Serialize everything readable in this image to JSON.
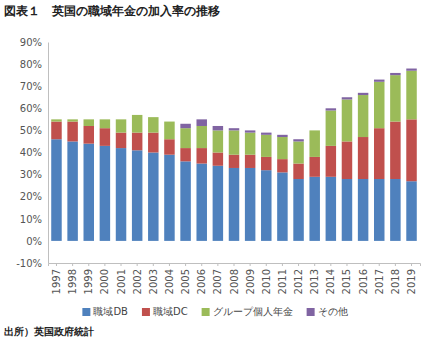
{
  "chart_data": {
    "type": "bar",
    "stacked": true,
    "grid": false,
    "legend": "bottom",
    "title": "図表１　英国の職域年金の加入率の推移",
    "source": "出所）英国政府統計",
    "categories": [
      "1997",
      "1998",
      "1999",
      "2000",
      "2001",
      "2002",
      "2003",
      "2004",
      "2005",
      "2006",
      "2007",
      "2008",
      "2009",
      "2010",
      "2011",
      "2012",
      "2013",
      "2014",
      "2015",
      "2016",
      "2017",
      "2018",
      "2019"
    ],
    "ylim": [
      -10,
      90
    ],
    "yticks": [
      {
        "value": -10,
        "label": "-10%"
      },
      {
        "value": 0,
        "label": "0%"
      },
      {
        "value": 10,
        "label": "10%"
      },
      {
        "value": 20,
        "label": "20%"
      },
      {
        "value": 30,
        "label": "30%"
      },
      {
        "value": 40,
        "label": "40%"
      },
      {
        "value": 50,
        "label": "50%"
      },
      {
        "value": 60,
        "label": "60%"
      },
      {
        "value": 70,
        "label": "70%"
      },
      {
        "value": 80,
        "label": "80%"
      },
      {
        "value": 90,
        "label": "90%"
      }
    ],
    "series": [
      {
        "name": "職域DB",
        "color": "#4f81bd",
        "values": [
          46,
          45,
          44,
          43,
          42,
          41,
          40,
          39,
          36,
          35,
          34,
          33,
          33,
          32,
          31,
          28,
          29,
          29,
          28,
          28,
          28,
          28,
          27
        ]
      },
      {
        "name": "職域DC",
        "color": "#c0504d",
        "values": [
          8,
          9,
          8,
          8,
          7,
          8,
          9,
          7,
          6,
          7,
          6,
          6,
          6,
          6,
          6,
          7,
          9,
          14,
          17,
          19,
          23,
          26,
          28
        ]
      },
      {
        "name": "グループ個人年金",
        "color": "#9bbb59",
        "values": [
          1,
          1,
          3,
          4,
          6,
          8,
          7,
          8,
          9,
          10,
          10,
          11,
          10,
          10,
          10,
          10,
          12,
          16,
          19,
          19,
          21,
          21,
          22
        ]
      },
      {
        "name": "その他",
        "color": "#8064a2",
        "values": [
          0,
          0,
          0,
          0,
          0,
          0,
          0,
          0,
          2,
          3,
          2,
          1,
          1,
          1,
          1,
          1,
          0,
          1,
          1,
          1,
          1,
          1,
          1
        ]
      }
    ]
  }
}
